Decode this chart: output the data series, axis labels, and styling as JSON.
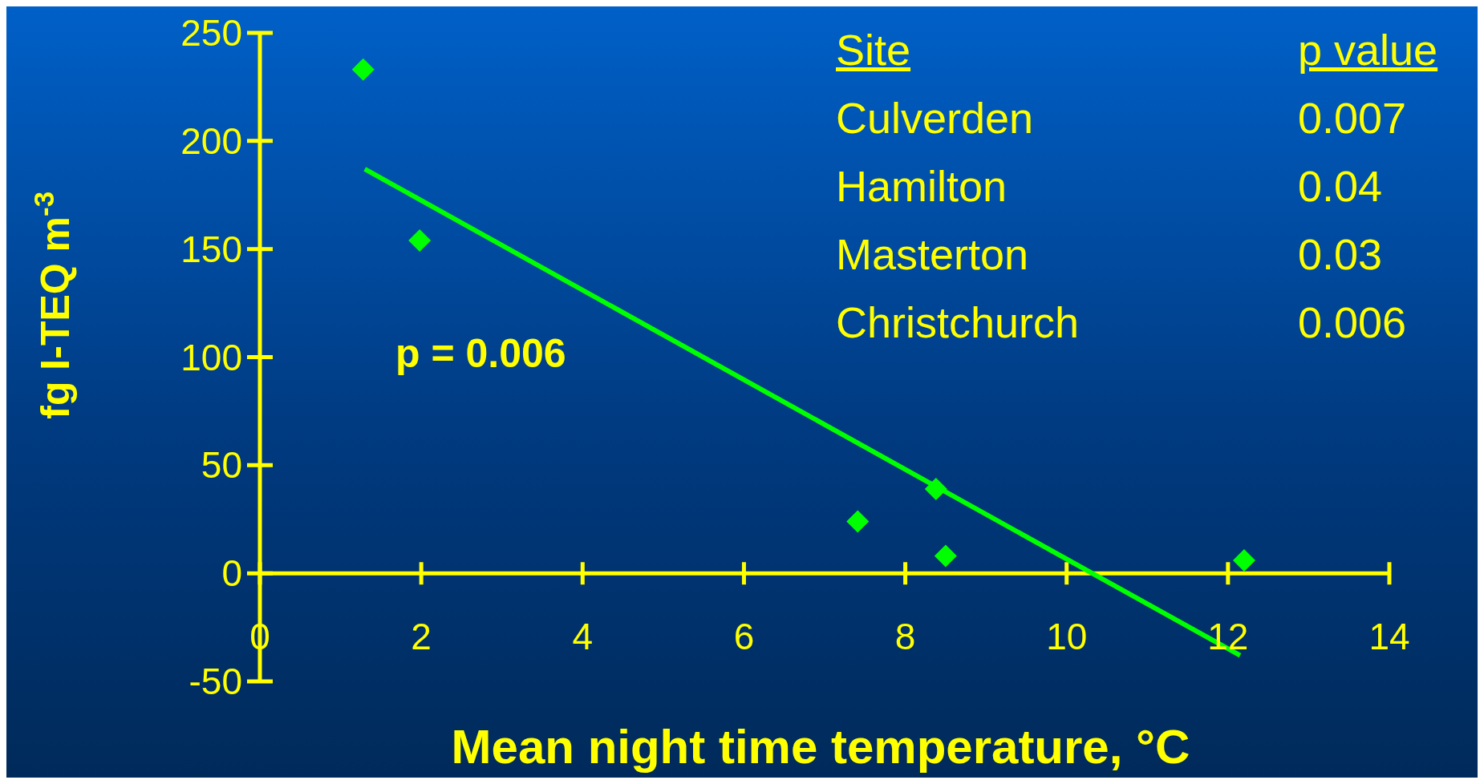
{
  "chart_data": {
    "type": "scatter",
    "xlabel": "Mean night time temperature, °C",
    "ylabel": "fg I-TEQ m$^{-3}$",
    "xlim": [
      0,
      14
    ],
    "xticks": [
      0,
      2,
      4,
      6,
      8,
      10,
      12,
      14
    ],
    "ylim": [
      -50,
      250
    ],
    "yticks": [
      -50,
      0,
      50,
      100,
      150,
      200,
      250
    ],
    "grid": false,
    "legend": false,
    "x": [
      1.28,
      1.98,
      7.41,
      8.38,
      8.5,
      12.2
    ],
    "series": [
      {
        "type": "scatter",
        "color": "#00ff00",
        "marker": "diamond",
        "values": [
          233,
          154,
          24,
          39,
          8,
          6
        ]
      },
      {
        "type": "line",
        "color": "#00ff00",
        "x": [
          1.3,
          12.15
        ],
        "values": [
          187,
          -38
        ]
      }
    ],
    "annotations": [
      "p = 0.006",
      "Site",
      "p value",
      "Culverden",
      "0.007",
      "Hamilton",
      "0.04",
      "Masterton",
      "0.03",
      "Christchurch",
      "0.006"
    ]
  }
}
